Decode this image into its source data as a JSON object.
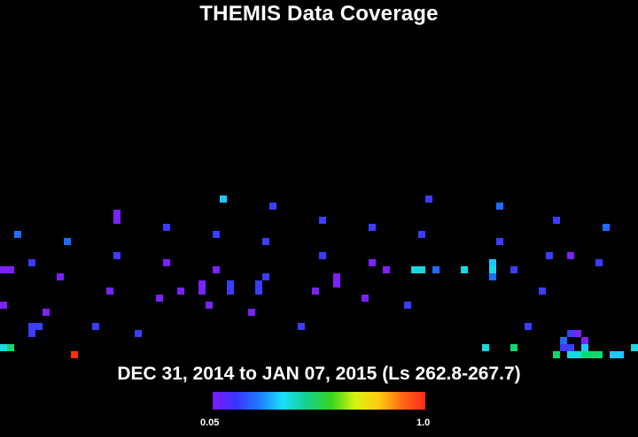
{
  "title": "THEMIS Data Coverage",
  "date_range": "DEC 31, 2014 to JAN 07, 2015 (Ls 262.8-267.7)",
  "colorbar": {
    "min_label": "0.05",
    "max_label": "1.0",
    "colors": [
      "#7a1dff",
      "#3a33ff",
      "#1f7dff",
      "#18e0f8",
      "#14d08e",
      "#39d51a",
      "#d9f214",
      "#ffcc10",
      "#ff6a12",
      "#ff2a1a"
    ]
  },
  "coverage_colors": {
    "violet": "#7b22ff",
    "blue": "#3b3dff",
    "mid_blue": "#1f6cff",
    "cyan": "#1fc8ff",
    "teal": "#19d8e0",
    "green": "#10d870",
    "red": "#ff3010"
  }
}
